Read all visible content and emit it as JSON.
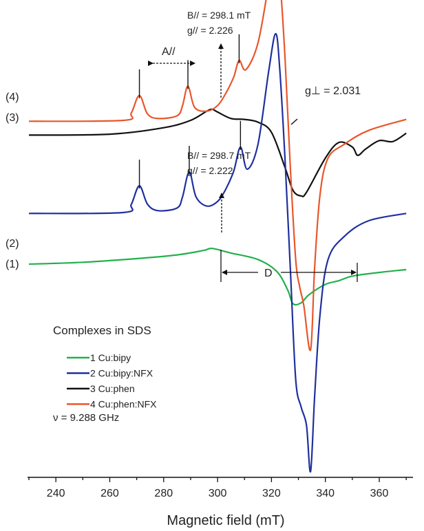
{
  "chart_data": {
    "type": "line",
    "xlabel": "Magnetic field (mT)",
    "xlim": [
      230,
      372
    ],
    "x_ticks": [
      240,
      260,
      280,
      300,
      320,
      340,
      360
    ],
    "grid": false,
    "y_axis": "none",
    "legend": {
      "title": "Complexes in SDS",
      "placement": "bottom-left",
      "entries": [
        "1 Cu:bipy",
        "2 Cu:bipy:NFX",
        "3 Cu:phen",
        "4 Cu:phen:NFX"
      ],
      "note": "ν = 9.288 GHz"
    },
    "series": [
      {
        "id": "1",
        "name": "1 Cu:bipy",
        "curve_label": "(1)",
        "color": "#22b04b",
        "baseline": 0.0,
        "x": [
          230,
          250,
          270,
          285,
          295,
          298,
          305,
          315,
          322,
          326,
          328,
          331,
          334,
          340,
          345,
          350,
          360,
          370
        ],
        "y": [
          0,
          0.2,
          0.6,
          1.0,
          1.5,
          1.7,
          1.2,
          0.5,
          -0.8,
          -2.8,
          -4.3,
          -4.2,
          -3.3,
          -2.2,
          -1.8,
          -1.3,
          -0.9,
          -0.6
        ]
      },
      {
        "id": "2",
        "name": "2 Cu:bipy:NFX",
        "curve_label": "(2)",
        "color": "#1f2f9e",
        "baseline": 5.5,
        "x": [
          230,
          265,
          268,
          271,
          274,
          278,
          285,
          287,
          289.5,
          292,
          296,
          300,
          303,
          306,
          308.5,
          311,
          315,
          319,
          321.5,
          323,
          325,
          327,
          329,
          331,
          333,
          334.5,
          336,
          338,
          341,
          347,
          356,
          370
        ],
        "y": [
          0,
          0.1,
          1.0,
          3.0,
          1.0,
          0.3,
          0.6,
          1.8,
          4.5,
          1.8,
          0.8,
          1.3,
          2.6,
          4.6,
          7.2,
          4.8,
          7.5,
          15.5,
          19.5,
          16,
          6,
          -6,
          -18,
          -21,
          -23,
          -28,
          -20,
          -11,
          -5,
          -2.5,
          -0.8,
          0
        ]
      },
      {
        "id": "3",
        "name": "3 Cu:phen",
        "curve_label": "(3)",
        "color": "#111111",
        "baseline": 14.0,
        "x": [
          230,
          260,
          280,
          290,
          296,
          298,
          300,
          305,
          310,
          315,
          320,
          325,
          328,
          331,
          333,
          340,
          345,
          350,
          352,
          355,
          360,
          365,
          370
        ],
        "y": [
          0,
          0.1,
          0.8,
          1.6,
          2.6,
          2.8,
          2.5,
          1.8,
          1.7,
          1.4,
          0.3,
          -3.5,
          -6.0,
          -6.6,
          -6.2,
          -2.5,
          -0.8,
          -1.3,
          -2.2,
          -1.5,
          -0.6,
          -0.7,
          0.2
        ]
      },
      {
        "id": "4",
        "name": "4 Cu:phen:NFX",
        "curve_label": "(4)",
        "color": "#e8562a",
        "baseline": 15.5,
        "x": [
          230,
          265,
          268,
          271,
          274,
          278,
          285,
          287,
          289,
          291.5,
          296,
          300,
          303,
          306,
          308,
          310.5,
          315,
          319,
          321.5,
          323,
          325,
          327,
          329,
          330.5,
          332,
          334.5,
          336,
          338,
          341,
          347,
          356,
          370
        ],
        "y": [
          0,
          0.1,
          0.9,
          2.8,
          0.8,
          0.3,
          0.6,
          1.7,
          3.8,
          1.5,
          1.1,
          1.7,
          3.0,
          4.8,
          6.6,
          5.6,
          8.5,
          15,
          19.6,
          16,
          7,
          -5,
          -15,
          -18,
          -20,
          -24.8,
          -16,
          -8,
          -4,
          -2.5,
          -1,
          0.2
        ]
      }
    ],
    "annotations": {
      "upper_field": "B// = 298.1 mT",
      "upper_g": "g// = 2.226",
      "lower_field": "B// = 298.7 mT",
      "lower_g": "g// = 2.222",
      "a_parallel": "A//",
      "g_perp": "g⊥ = 2.031",
      "d_label": "D"
    }
  }
}
